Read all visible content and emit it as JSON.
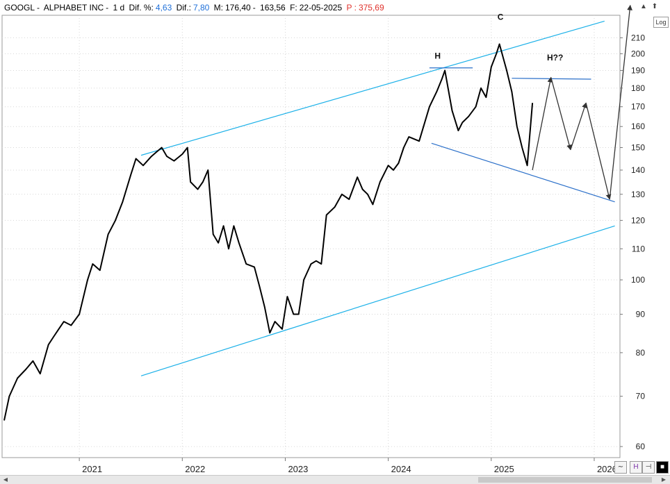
{
  "header": {
    "ticker": "GOOGL",
    "name": "ALPHABET INC",
    "interval": "1 d",
    "dif_pct_label": "Dif. %:",
    "dif_pct_value": "4,63",
    "dif_label": "Dif.:",
    "dif_value": "7,80",
    "max_label": "M:",
    "max_value": "176,40",
    "min_value": "163,56",
    "date_label": "F:",
    "date_value": "22-05-2025",
    "p_label": "P :",
    "p_value": "375,69"
  },
  "controls": {
    "log_label": "Log"
  },
  "colors": {
    "price": "#000000",
    "channel": "#1ab0e8",
    "trend": "#2a6fc9",
    "positive": "#1e6fd9",
    "negative": "#e0312b",
    "projection": "#333333"
  },
  "chart_data": {
    "type": "line",
    "scale": "log",
    "ylim": [
      58,
      225
    ],
    "yticks": [
      60,
      70,
      80,
      90,
      100,
      110,
      120,
      130,
      140,
      150,
      160,
      170,
      180,
      190,
      200,
      210
    ],
    "ytick_labels": [
      "60",
      "70",
      "80",
      "90",
      "100",
      "110",
      "120",
      "130",
      "140",
      "150",
      "160",
      "170",
      "180",
      "190",
      "200",
      "210"
    ],
    "xlim": [
      2020.25,
      2026.25
    ],
    "xticks": [
      2021,
      2022,
      2023,
      2024,
      2025,
      2026
    ],
    "xtick_labels": [
      "2021",
      "2022",
      "2023",
      "2024",
      "2025",
      "2026"
    ],
    "series": [
      {
        "x": [
          2020.27,
          2020.32,
          2020.4,
          2020.48,
          2020.55,
          2020.62,
          2020.7,
          2020.75,
          2020.8,
          2020.85,
          2020.92,
          2021.0,
          2021.08,
          2021.13,
          2021.2,
          2021.28,
          2021.35,
          2021.42,
          2021.5,
          2021.55,
          2021.62,
          2021.7,
          2021.75,
          2021.8,
          2021.85,
          2021.92,
          2022.0,
          2022.05,
          2022.08,
          2022.15,
          2022.2,
          2022.25,
          2022.3,
          2022.35,
          2022.4,
          2022.45,
          2022.5,
          2022.55,
          2022.62,
          2022.7,
          2022.75,
          2022.8,
          2022.85,
          2022.9,
          2022.97,
          2023.02,
          2023.08,
          2023.13,
          2023.18,
          2023.25,
          2023.3,
          2023.35,
          2023.4,
          2023.48,
          2023.55,
          2023.62,
          2023.7,
          2023.75,
          2023.8,
          2023.85,
          2023.92,
          2024.0,
          2024.05,
          2024.1,
          2024.15,
          2024.2,
          2024.3,
          2024.4,
          2024.47,
          2024.52,
          2024.55,
          2024.62,
          2024.68,
          2024.72,
          2024.78,
          2024.85,
          2024.9,
          2024.95,
          2025.0,
          2025.05,
          2025.08,
          2025.15,
          2025.2,
          2025.25,
          2025.3,
          2025.35,
          2025.4
        ],
        "y": [
          65,
          70,
          74,
          76,
          78,
          75,
          82,
          84,
          86,
          88,
          87,
          90,
          100,
          105,
          103,
          115,
          120,
          127,
          138,
          145,
          142,
          146,
          148,
          150,
          146,
          144,
          147,
          150,
          135,
          132,
          135,
          140,
          115,
          112,
          118,
          110,
          118,
          112,
          105,
          104,
          98,
          92,
          85,
          88,
          86,
          95,
          90,
          90,
          100,
          105,
          106,
          105,
          122,
          125,
          130,
          128,
          137,
          132,
          130,
          126,
          135,
          142,
          140,
          143,
          150,
          155,
          153,
          170,
          178,
          185,
          190,
          168,
          158,
          162,
          165,
          170,
          180,
          175,
          192,
          200,
          206,
          190,
          178,
          160,
          150,
          142,
          172
        ]
      }
    ],
    "annotations": [
      {
        "label": "H",
        "x": 2024.48,
        "y": 197
      },
      {
        "label": "C",
        "x": 2025.09,
        "y": 222
      },
      {
        "label": "H??",
        "x": 2025.62,
        "y": 196
      }
    ],
    "channel_upper": [
      [
        2021.6,
        146.5
      ],
      [
        2026.1,
        221
      ]
    ],
    "channel_lower": [
      [
        2021.6,
        74.5
      ],
      [
        2026.2,
        118
      ]
    ],
    "support_line": [
      [
        2024.42,
        152
      ],
      [
        2026.2,
        127
      ]
    ],
    "neckline_h": [
      [
        2024.4,
        191.5
      ],
      [
        2024.82,
        191.5
      ]
    ],
    "neckline_future": [
      [
        2025.2,
        185.5
      ],
      [
        2025.97,
        185
      ]
    ],
    "projection": [
      [
        2025.4,
        140
      ],
      [
        2025.58,
        186
      ],
      [
        2025.77,
        149
      ],
      [
        2025.92,
        172
      ],
      [
        2026.15,
        128
      ],
      [
        2026.35,
        232
      ]
    ]
  }
}
